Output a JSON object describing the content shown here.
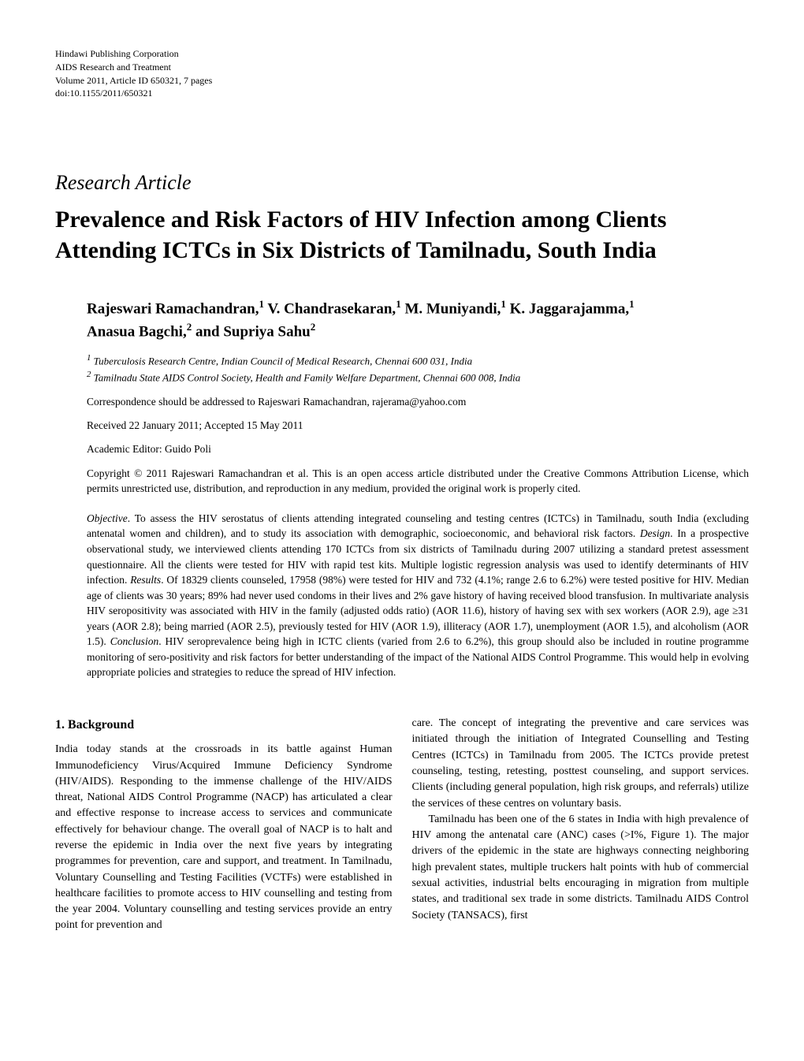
{
  "header": {
    "publisher": "Hindawi Publishing Corporation",
    "journal": "AIDS Research and Treatment",
    "volume_info": "Volume 2011, Article ID 650321, 7 pages",
    "doi": "doi:10.1155/2011/650321"
  },
  "article_type": "Research Article",
  "title": "Prevalence and Risk Factors of HIV Infection among Clients Attending ICTCs in Six Districts of Tamilnadu, South India",
  "authors_line1": "Rajeswari Ramachandran,",
  "authors_sup1": "1",
  "authors_name2": " V. Chandrasekaran,",
  "authors_sup2": "1",
  "authors_name3": " M. Muniyandi,",
  "authors_sup3": "1",
  "authors_name4": " K. Jaggarajamma,",
  "authors_sup4": "1",
  "authors_line2_name1": "Anasua Bagchi,",
  "authors_line2_sup1": "2",
  "authors_line2_and": " and Supriya Sahu",
  "authors_line2_sup2": "2",
  "affiliations": {
    "aff1_sup": "1",
    "aff1": "Tuberculosis Research Centre, Indian Council of Medical Research, Chennai 600 031, India",
    "aff2_sup": "2",
    "aff2": "Tamilnadu State AIDS Control Society, Health and Family Welfare Department, Chennai 600 008, India"
  },
  "correspondence": "Correspondence should be addressed to Rajeswari Ramachandran, rajerama@yahoo.com",
  "dates": "Received 22 January 2011; Accepted 15 May 2011",
  "editor": "Academic Editor: Guido Poli",
  "copyright": "Copyright © 2011 Rajeswari Ramachandran et al. This is an open access article distributed under the Creative Commons Attribution License, which permits unrestricted use, distribution, and reproduction in any medium, provided the original work is properly cited.",
  "abstract": {
    "objective_label": "Objective",
    "objective_text": ". To assess the HIV serostatus of clients attending integrated counseling and testing centres (ICTCs) in Tamilnadu, south India (excluding antenatal women and children), and to study its association with demographic, socioeconomic, and behavioral risk factors. ",
    "design_label": "Design",
    "design_text": ". In a prospective observational study, we interviewed clients attending 170 ICTCs from six districts of Tamilnadu during 2007 utilizing a standard pretest assessment questionnaire. All the clients were tested for HIV with rapid test kits. Multiple logistic regression analysis was used to identify determinants of HIV infection. ",
    "results_label": "Results",
    "results_text": ". Of 18329 clients counseled, 17958 (98%) were tested for HIV and 732 (4.1%; range 2.6 to 6.2%) were tested positive for HIV. Median age of clients was 30 years; 89% had never used condoms in their lives and 2% gave history of having received blood transfusion. In multivariate analysis HIV seropositivity was associated with HIV in the family (adjusted odds ratio) (AOR 11.6), history of having sex with sex workers (AOR 2.9), age ≥31 years (AOR 2.8); being married (AOR 2.5), previously tested for HIV (AOR 1.9), illiteracy (AOR 1.7), unemployment (AOR 1.5), and alcoholism (AOR 1.5). ",
    "conclusion_label": "Conclusion",
    "conclusion_text": ". HIV seroprevalence being high in ICTC clients (varied from 2.6 to 6.2%), this group should also be included in routine programme monitoring of sero-positivity and risk factors for better understanding of the impact of the National AIDS Control Programme. This would help in evolving appropriate policies and strategies to reduce the spread of HIV infection."
  },
  "section1_title": "1. Background",
  "body": {
    "col1_p1": "India today stands at the crossroads in its battle against Human Immunodeficiency Virus/Acquired Immune Deficiency Syndrome (HIV/AIDS). Responding to the immense challenge of the HIV/AIDS threat, National AIDS Control Programme (NACP) has articulated a clear and effective response to increase access to services and communicate effectively for behaviour change. The overall goal of NACP is to halt and reverse the epidemic in India over the next five years by integrating programmes for prevention, care and support, and treatment. In Tamilnadu, Voluntary Counselling and Testing Facilities (VCTFs) were established in healthcare facilities to promote access to HIV counselling and testing from the year 2004. Voluntary counselling and testing services provide an entry point for prevention and",
    "col2_p1": "care. The concept of integrating the preventive and care services was initiated through the initiation of Integrated Counselling and Testing Centres (ICTCs) in Tamilnadu from 2005. The ICTCs provide pretest counseling, testing, retesting, posttest counseling, and support services. Clients (including general population, high risk groups, and referrals) utilize the services of these centres on voluntary basis.",
    "col2_p2": "Tamilnadu has been one of the 6 states in India with high prevalence of HIV among the antenatal care (ANC) cases (>I%, Figure 1). The major drivers of the epidemic in the state are highways connecting neighboring high prevalent states, multiple truckers halt points with hub of commercial sexual activities, industrial belts encouraging in migration from multiple states, and traditional sex trade in some districts. Tamilnadu AIDS Control Society (TANSACS), first"
  }
}
